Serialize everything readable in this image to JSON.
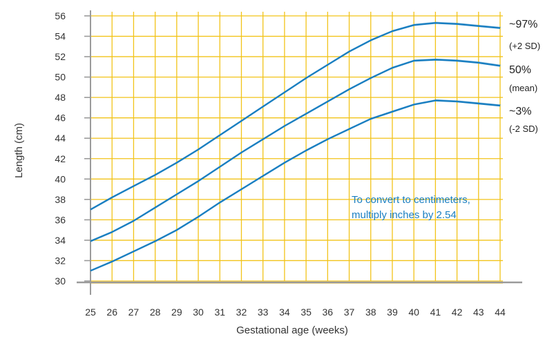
{
  "colors": {
    "grid": "#f2c318",
    "curve": "#1a7fc1",
    "axis": "#9a9a9a",
    "note": "#1a7fc1",
    "text": "#333333"
  },
  "chart_data": {
    "type": "line",
    "title": "",
    "xlabel": "Gestational age (weeks)",
    "ylabel": "Length (cm)",
    "xlim": [
      25,
      44
    ],
    "ylim": [
      30,
      56
    ],
    "x_ticks": [
      25,
      26,
      27,
      28,
      29,
      30,
      31,
      32,
      33,
      34,
      35,
      36,
      37,
      38,
      39,
      40,
      41,
      42,
      43,
      44
    ],
    "y_ticks": [
      30,
      32,
      34,
      36,
      38,
      40,
      42,
      44,
      46,
      48,
      50,
      52,
      54,
      56
    ],
    "grid": true,
    "note": [
      "To convert to centimeters,",
      "multiply inches by 2.54"
    ],
    "series": [
      {
        "name": "~97%",
        "sublabel": "(+2 SD)",
        "x": [
          25,
          26,
          27,
          28,
          29,
          30,
          31,
          32,
          33,
          34,
          35,
          36,
          37,
          38,
          39,
          40,
          41,
          42,
          43,
          44
        ],
        "values": [
          37.0,
          38.2,
          39.3,
          40.4,
          41.6,
          42.9,
          44.3,
          45.7,
          47.1,
          48.5,
          49.9,
          51.2,
          52.5,
          53.6,
          54.5,
          55.1,
          55.3,
          55.2,
          55.0,
          54.8
        ]
      },
      {
        "name": "50%",
        "sublabel": "(mean)",
        "x": [
          25,
          26,
          27,
          28,
          29,
          30,
          31,
          32,
          33,
          34,
          35,
          36,
          37,
          38,
          39,
          40,
          41,
          42,
          43,
          44
        ],
        "values": [
          33.9,
          34.8,
          35.9,
          37.2,
          38.5,
          39.8,
          41.2,
          42.6,
          43.9,
          45.2,
          46.4,
          47.6,
          48.8,
          49.9,
          50.9,
          51.6,
          51.7,
          51.6,
          51.4,
          51.1
        ]
      },
      {
        "name": "~3%",
        "sublabel": "(-2 SD)",
        "x": [
          25,
          26,
          27,
          28,
          29,
          30,
          31,
          32,
          33,
          34,
          35,
          36,
          37,
          38,
          39,
          40,
          41,
          42,
          43,
          44
        ],
        "values": [
          31.0,
          31.9,
          32.9,
          33.9,
          35.0,
          36.3,
          37.7,
          39.0,
          40.3,
          41.6,
          42.8,
          43.9,
          44.9,
          45.9,
          46.6,
          47.3,
          47.7,
          47.6,
          47.4,
          47.2
        ]
      }
    ]
  }
}
